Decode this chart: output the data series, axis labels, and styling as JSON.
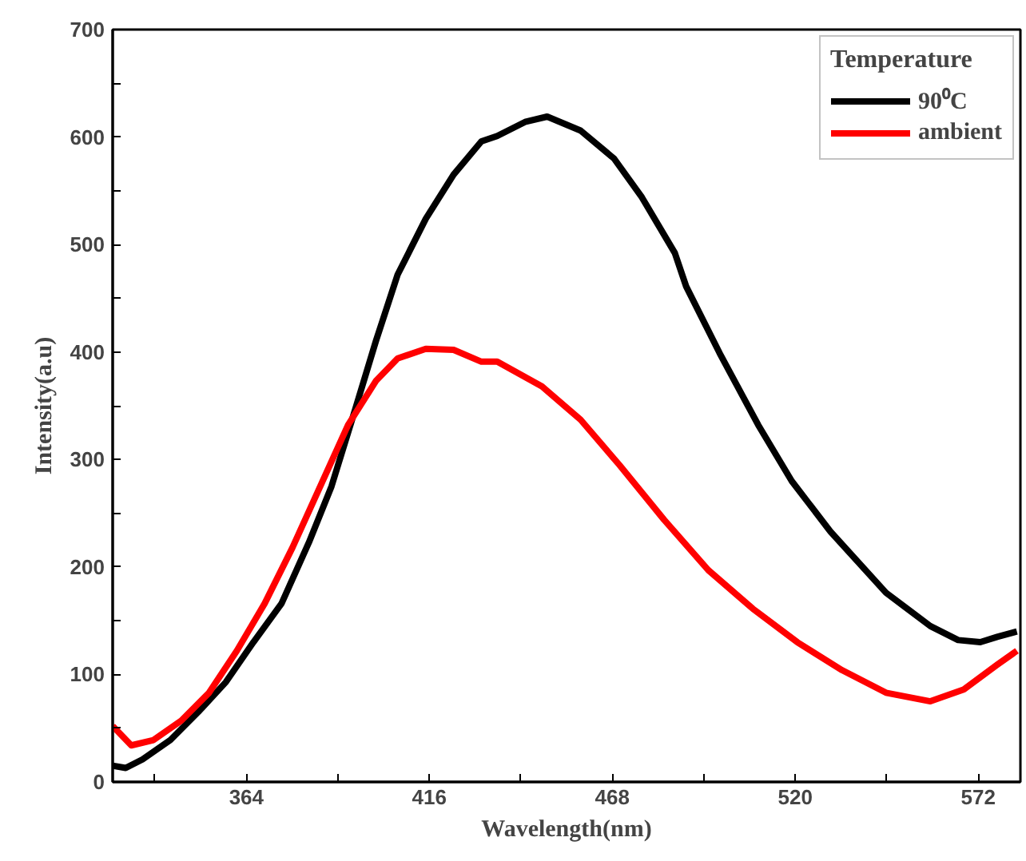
{
  "chart_data": {
    "type": "line",
    "xlabel": "Wavelength(nm)",
    "ylabel": "Intensity(a.u)",
    "legend_title": "Temperature",
    "legend": "top right",
    "grid": false,
    "xlim": [
      326,
      584
    ],
    "ylim": [
      0,
      700
    ],
    "xticks": [
      {
        "value": 338,
        "label": null
      },
      364,
      {
        "value": 390,
        "label": null
      },
      416,
      {
        "value": 442,
        "label": null
      },
      468,
      {
        "value": 494,
        "label": null
      },
      520,
      {
        "value": 546,
        "label": null
      },
      572
    ],
    "yticks": [
      0,
      {
        "value": 50,
        "label": null
      },
      100,
      {
        "value": 150,
        "label": null
      },
      200,
      {
        "value": 250,
        "label": null
      },
      300,
      {
        "value": 350,
        "label": null
      },
      400,
      {
        "value": 450,
        "label": null
      },
      500,
      {
        "value": 550,
        "label": null
      },
      600,
      {
        "value": 650,
        "label": null
      },
      700
    ],
    "series": [
      {
        "name": "90⁰C",
        "color": "#000000",
        "x": [
          326,
          329.7,
          334.5,
          342.4,
          350.3,
          358.2,
          366,
          374,
          381.8,
          388.2,
          394.5,
          400.8,
          407,
          415,
          422.9,
          430.8,
          435.3,
          443.2,
          449.5,
          459,
          468.5,
          476.4,
          485.8,
          489,
          498.5,
          509.5,
          519,
          530,
          545.8,
          558.4,
          566.3,
          572.6,
          577.4,
          583
        ],
        "values": [
          15,
          13,
          21,
          39,
          65,
          93,
          130,
          166,
          223,
          275,
          342,
          410,
          472,
          524,
          565,
          596,
          601,
          614,
          619,
          606,
          580,
          544,
          492,
          461,
          399,
          332,
          280,
          233,
          176,
          145,
          132,
          130,
          135,
          140
        ]
      },
      {
        "name": "ambient",
        "color": "#ff0000",
        "x": [
          326,
          331.3,
          337.6,
          345.5,
          353.4,
          361.3,
          369.2,
          377.1,
          385,
          392.9,
          400.8,
          407,
          415,
          422.9,
          430.8,
          435.3,
          448,
          459,
          470,
          482.7,
          495.3,
          508,
          520.6,
          533.3,
          545.8,
          558.4,
          567.9,
          577.4,
          583
        ],
        "values": [
          52,
          34,
          39,
          57,
          83,
          122,
          166,
          218,
          275,
          332,
          373,
          394,
          403,
          402,
          391,
          391,
          368,
          337,
          295,
          244,
          197,
          161,
          130,
          104,
          83,
          75,
          86,
          109,
          122
        ]
      }
    ]
  }
}
